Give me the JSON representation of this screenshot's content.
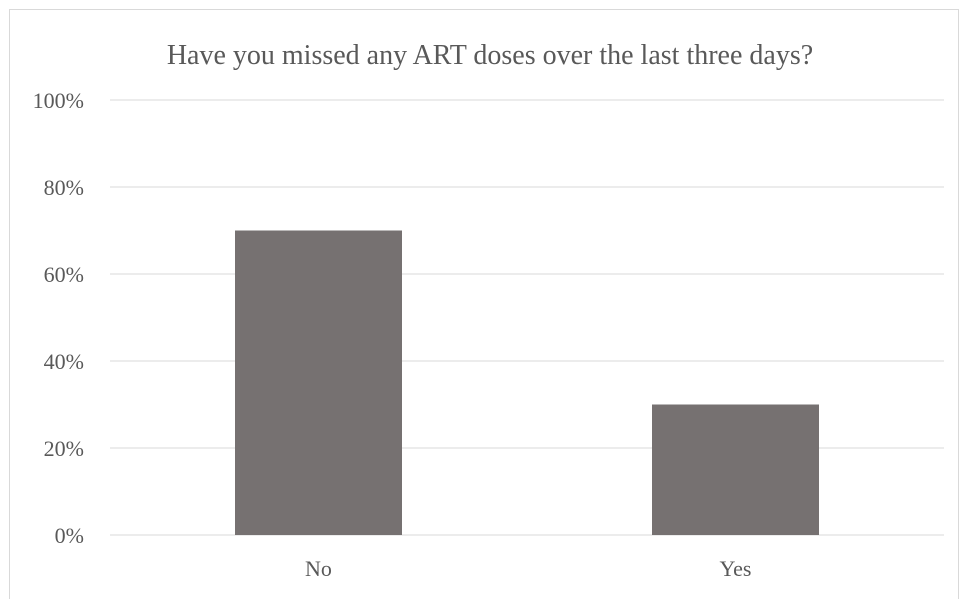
{
  "chart_data": {
    "type": "bar",
    "title": "Have you missed any ART doses over the last three days?",
    "categories": [
      "No",
      "Yes"
    ],
    "values": [
      70,
      30
    ],
    "ylim": [
      0,
      100
    ],
    "yticks": [
      0,
      20,
      40,
      60,
      80,
      100
    ],
    "ytick_format": "percent",
    "xlabel": "",
    "ylabel": "",
    "grid": true,
    "legend": "none",
    "bar_color": "#767171"
  }
}
